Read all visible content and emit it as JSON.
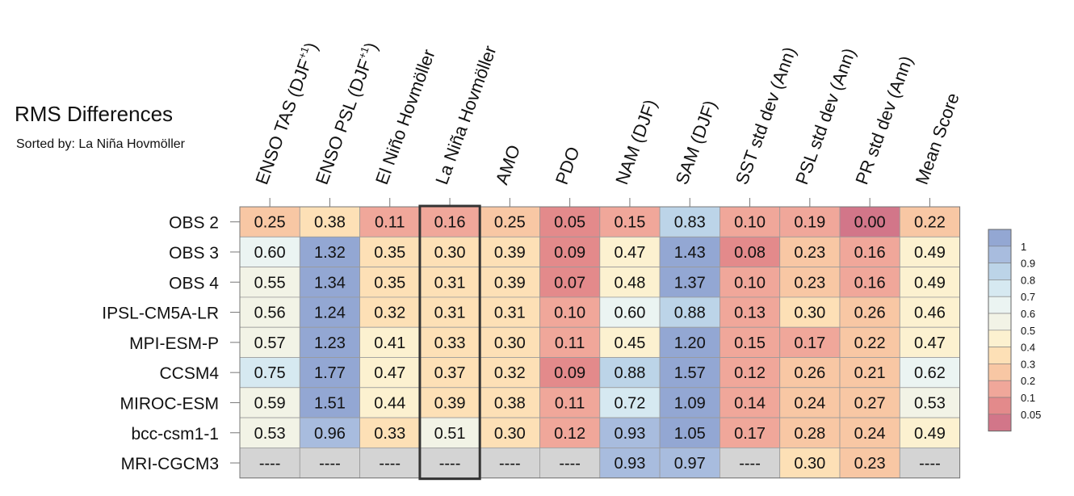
{
  "chart_data": {
    "type": "heatmap",
    "title": "RMS Differences",
    "subtitle": "Sorted by: La Niña Hovmöller",
    "columns": [
      {
        "base": "ENSO TAS (DJF",
        "sup": "+1",
        "tail": ")"
      },
      {
        "base": "ENSO PSL (DJF",
        "sup": "+1",
        "tail": ")"
      },
      {
        "base": "El Niño Hovmöller",
        "sup": "",
        "tail": ""
      },
      {
        "base": "La Niña Hovmöller",
        "sup": "",
        "tail": ""
      },
      {
        "base": "AMO",
        "sup": "",
        "tail": ""
      },
      {
        "base": "PDO",
        "sup": "",
        "tail": ""
      },
      {
        "base": "NAM (DJF)",
        "sup": "",
        "tail": ""
      },
      {
        "base": "SAM (DJF)",
        "sup": "",
        "tail": ""
      },
      {
        "base": "SST std dev (Ann)",
        "sup": "",
        "tail": ""
      },
      {
        "base": "PSL std dev (Ann)",
        "sup": "",
        "tail": ""
      },
      {
        "base": "PR std dev (Ann)",
        "sup": "",
        "tail": ""
      },
      {
        "base": "Mean Score",
        "sup": "",
        "tail": ""
      }
    ],
    "rows": [
      "OBS 2",
      "OBS 3",
      "OBS 4",
      "IPSL-CM5A-LR",
      "MPI-ESM-P",
      "CCSM4",
      "MIROC-ESM",
      "bcc-csm1-1",
      "MRI-CGCM3"
    ],
    "values": [
      [
        "0.25",
        "0.38",
        "0.11",
        "0.16",
        "0.25",
        "0.05",
        "0.15",
        "0.83",
        "0.10",
        "0.19",
        "0.00",
        "0.22"
      ],
      [
        "0.60",
        "1.32",
        "0.35",
        "0.30",
        "0.39",
        "0.09",
        "0.47",
        "1.43",
        "0.08",
        "0.23",
        "0.16",
        "0.49"
      ],
      [
        "0.55",
        "1.34",
        "0.35",
        "0.31",
        "0.39",
        "0.07",
        "0.48",
        "1.37",
        "0.10",
        "0.23",
        "0.16",
        "0.49"
      ],
      [
        "0.56",
        "1.24",
        "0.32",
        "0.31",
        "0.31",
        "0.10",
        "0.60",
        "0.88",
        "0.13",
        "0.30",
        "0.26",
        "0.46"
      ],
      [
        "0.57",
        "1.23",
        "0.41",
        "0.33",
        "0.30",
        "0.11",
        "0.45",
        "1.20",
        "0.15",
        "0.17",
        "0.22",
        "0.47"
      ],
      [
        "0.75",
        "1.77",
        "0.47",
        "0.37",
        "0.32",
        "0.09",
        "0.88",
        "1.57",
        "0.12",
        "0.26",
        "0.21",
        "0.62"
      ],
      [
        "0.59",
        "1.51",
        "0.44",
        "0.39",
        "0.38",
        "0.11",
        "0.72",
        "1.09",
        "0.14",
        "0.24",
        "0.27",
        "0.53"
      ],
      [
        "0.53",
        "0.96",
        "0.33",
        "0.51",
        "0.30",
        "0.12",
        "0.93",
        "1.05",
        "0.17",
        "0.28",
        "0.24",
        "0.49"
      ],
      [
        "----",
        "----",
        "----",
        "----",
        "----",
        "----",
        "0.93",
        "0.97",
        "----",
        "0.30",
        "0.23",
        "----"
      ]
    ],
    "highlight_column": "La Niña Hovmöller",
    "missing_label": "----",
    "missing_color": "#d4d4d4",
    "colorbar": {
      "labels": [
        "1",
        "0.9",
        "0.8",
        "0.7",
        "0.6",
        "0.5",
        "0.4",
        "0.3",
        "0.2",
        "0.1",
        "0.05"
      ],
      "bins": [
        {
          "min": 1.0,
          "color": "#93a7d3"
        },
        {
          "min": 0.9,
          "color": "#a8bcde"
        },
        {
          "min": 0.8,
          "color": "#bcd4e8"
        },
        {
          "min": 0.7,
          "color": "#d6e9f1"
        },
        {
          "min": 0.6,
          "color": "#ebf4f2"
        },
        {
          "min": 0.5,
          "color": "#f2f3e6"
        },
        {
          "min": 0.4,
          "color": "#fcf1d0"
        },
        {
          "min": 0.3,
          "color": "#fde0b6"
        },
        {
          "min": 0.2,
          "color": "#f8c7a4"
        },
        {
          "min": 0.1,
          "color": "#f0a79a"
        },
        {
          "min": 0.05,
          "color": "#e38a8b"
        },
        {
          "min": -1,
          "color": "#d27689"
        }
      ]
    }
  }
}
